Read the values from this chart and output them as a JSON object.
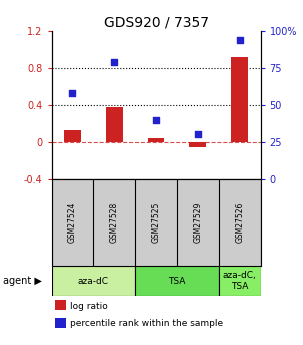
{
  "title": "GDS920 / 7357",
  "samples": [
    "GSM27524",
    "GSM27528",
    "GSM27525",
    "GSM27529",
    "GSM27526"
  ],
  "log_ratio": [
    0.13,
    0.38,
    0.04,
    -0.06,
    0.92
  ],
  "percentile_rank": [
    58,
    79,
    40,
    30,
    94
  ],
  "left_ylim": [
    -0.4,
    1.2
  ],
  "right_ylim": [
    0,
    100
  ],
  "left_yticks": [
    -0.4,
    0.0,
    0.4,
    0.8,
    1.2
  ],
  "right_yticks": [
    0,
    25,
    50,
    75,
    100
  ],
  "left_yticklabels": [
    "-0.4",
    "0",
    "0.4",
    "0.8",
    "1.2"
  ],
  "right_yticklabels": [
    "0",
    "25",
    "50",
    "75",
    "100%"
  ],
  "hlines_dotted": [
    0.4,
    0.8
  ],
  "hline_dashed": 0.0,
  "bar_color": "#cc2222",
  "dot_color": "#2222cc",
  "agent_groups": [
    {
      "label": "aza-dC",
      "start": 0,
      "end": 2,
      "color": "#c8f0a0"
    },
    {
      "label": "TSA",
      "start": 2,
      "end": 4,
      "color": "#66dd55"
    },
    {
      "label": "aza-dC,\nTSA",
      "start": 4,
      "end": 5,
      "color": "#88ee66"
    }
  ],
  "legend_items": [
    {
      "color": "#cc2222",
      "label": "log ratio"
    },
    {
      "color": "#2222cc",
      "label": "percentile rank within the sample"
    }
  ],
  "title_fontsize": 10,
  "tick_fontsize": 7,
  "bar_width": 0.4,
  "dot_size": 25,
  "background_color": "#ffffff",
  "sample_bg_color": "#cccccc",
  "left_tick_color": "#cc2222",
  "right_tick_color": "#2222cc"
}
